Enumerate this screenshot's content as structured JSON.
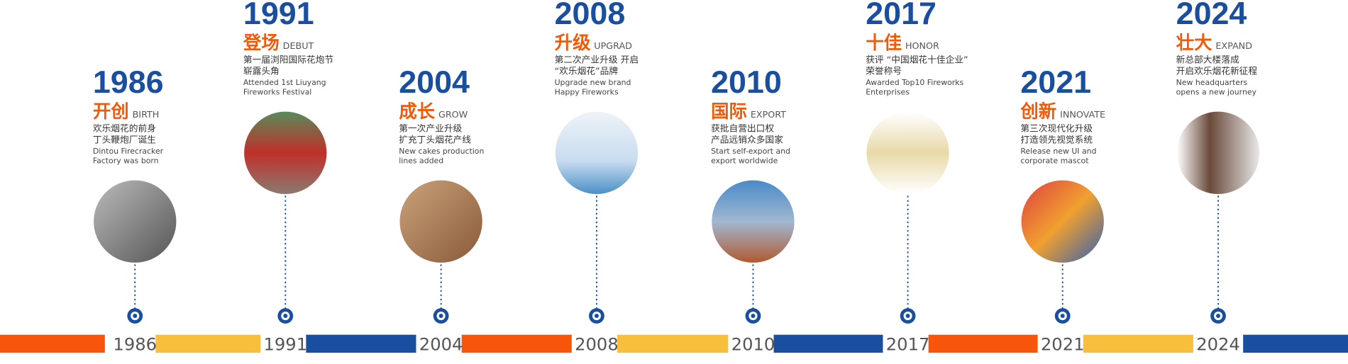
{
  "items": [
    {
      "year": "1986",
      "title_cn": "开创",
      "title_en": "BIRTH",
      "desc_cn": [
        "欢乐烟花的前身",
        "丁头鞭炮厂诞生"
      ],
      "desc_en": [
        "Dintou Firecracker",
        "Factory was born"
      ]
    },
    {
      "year": "1991",
      "title_cn": "登场",
      "title_en": "DEBUT",
      "desc_cn": [
        "第一届浏阳国际花炮节",
        "崭露头角"
      ],
      "desc_en": [
        "Attended 1st Liuyang",
        "Fireworks Festival"
      ]
    },
    {
      "year": "2004",
      "title_cn": "成长",
      "title_en": "GROW",
      "desc_cn": [
        "第一次产业升级",
        "扩充丁头烟花产线"
      ],
      "desc_en": [
        "New cakes production",
        "lines added"
      ]
    },
    {
      "year": "2008",
      "title_cn": "升级",
      "title_en": "UPGRAD",
      "desc_cn": [
        "第二次产业升级 开启",
        "“欢乐烟花”品牌"
      ],
      "desc_en": [
        "Upgrade new brand",
        "Happy Fireworks"
      ]
    },
    {
      "year": "2010",
      "title_cn": "国际",
      "title_en": "EXPORT",
      "desc_cn": [
        "获批自营出口权",
        "产品远销众多国家"
      ],
      "desc_en": [
        "Start self-export and",
        "export worldwide"
      ]
    },
    {
      "year": "2017",
      "title_cn": "十佳",
      "title_en": "HONOR",
      "desc_cn": [
        "获评 “中国烟花十佳企业”",
        "荣誉称号"
      ],
      "desc_en": [
        "Awarded Top10 Fireworks",
        "Enterprises"
      ]
    },
    {
      "year": "2021",
      "title_cn": "创新",
      "title_en": "INNOVATE",
      "desc_cn": [
        "第三次现代化升级",
        "打造领先视觉系统"
      ],
      "desc_en": [
        "Release new UI and",
        "corporate mascot"
      ]
    },
    {
      "year": "2024",
      "title_cn": "壮大",
      "title_en": "EXPAND",
      "desc_cn": [
        "新总部大楼落成",
        "开启欢乐烟花新征程"
      ],
      "desc_en": [
        "New headquarters",
        "opens a new journey"
      ]
    }
  ]
}
